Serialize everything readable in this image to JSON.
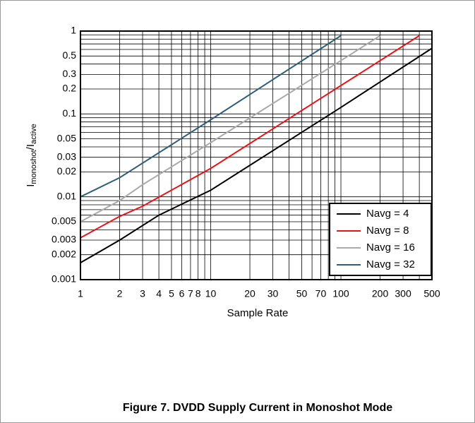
{
  "chart_data": {
    "type": "line",
    "log_x": true,
    "log_y": true,
    "grid": true,
    "xlabel": "Sample Rate",
    "ylabel": [
      "I",
      "monoshot",
      "/I",
      "active"
    ],
    "caption": "Figure 7. DVDD Supply Current in Monoshot Mode",
    "xlim": [
      1,
      500
    ],
    "ylim": [
      0.001,
      1
    ],
    "xticks": [
      1,
      2,
      3,
      4,
      5,
      6,
      7,
      8,
      10,
      20,
      30,
      50,
      70,
      100,
      200,
      300,
      500
    ],
    "x_minor_ticks": [
      9,
      40,
      60,
      80,
      90,
      400
    ],
    "yticks": [
      0.001,
      0.002,
      0.003,
      0.005,
      0.01,
      0.02,
      0.03,
      0.05,
      0.1,
      0.2,
      0.3,
      0.5,
      1
    ],
    "y_minor_ticks": [
      0.004,
      0.006,
      0.007,
      0.008,
      0.009,
      0.04,
      0.06,
      0.07,
      0.08,
      0.09,
      0.4,
      0.6,
      0.7,
      0.8,
      0.9
    ],
    "legend": "lower right",
    "series": [
      {
        "name": "Navg = 4",
        "color": "#000000",
        "x": [
          1,
          2,
          4,
          10,
          100,
          500
        ],
        "values": [
          0.0016,
          0.003,
          0.006,
          0.012,
          0.12,
          0.62
        ]
      },
      {
        "name": "Navg = 8",
        "color": "#e8141a",
        "x": [
          1,
          2,
          3,
          10,
          100,
          400
        ],
        "values": [
          0.0032,
          0.0058,
          0.0077,
          0.022,
          0.22,
          0.88
        ]
      },
      {
        "name": "Navg = 16",
        "color": "#aaaaaa",
        "x": [
          1,
          2,
          3,
          10,
          100,
          200
        ],
        "values": [
          0.005,
          0.009,
          0.014,
          0.045,
          0.44,
          0.88
        ]
      },
      {
        "name": "Navg = 32",
        "color": "#2e5f7a",
        "x": [
          1,
          2,
          10,
          100
        ],
        "values": [
          0.01,
          0.017,
          0.085,
          0.88
        ]
      }
    ]
  }
}
